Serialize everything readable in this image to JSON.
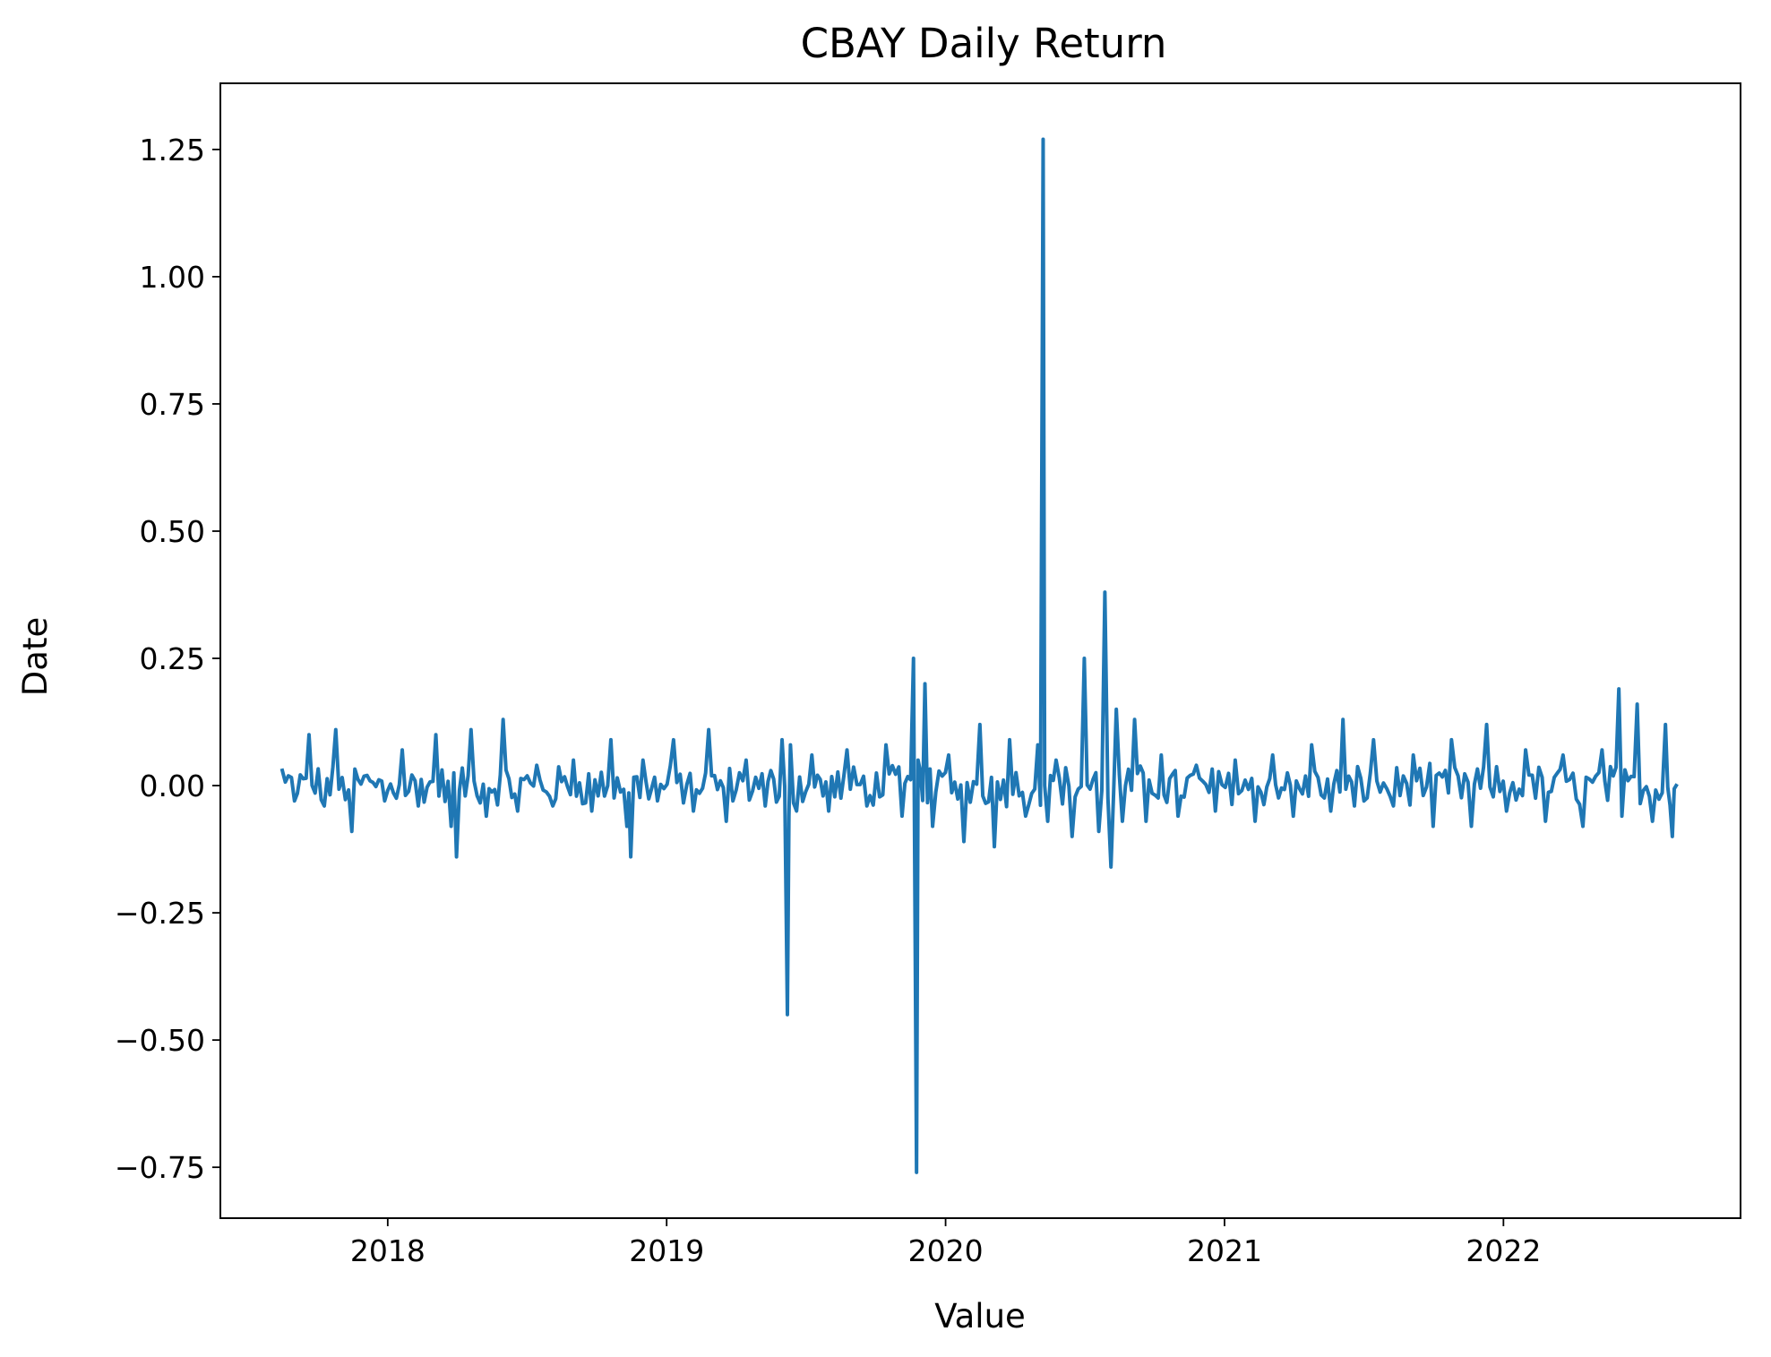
{
  "chart_data": {
    "type": "line",
    "title": "CBAY Daily Return",
    "xlabel": "Value",
    "ylabel": "Date",
    "x_range": [
      "2017-08-15",
      "2022-08-15"
    ],
    "xlim": [
      2017.4,
      2022.85
    ],
    "ylim": [
      -0.85,
      1.38
    ],
    "x_ticks": [
      {
        "value": 2018,
        "label": "2018"
      },
      {
        "value": 2019,
        "label": "2019"
      },
      {
        "value": 2020,
        "label": "2020"
      },
      {
        "value": 2021,
        "label": "2021"
      },
      {
        "value": 2022,
        "label": "2022"
      }
    ],
    "y_ticks": [
      {
        "value": 1.25,
        "label": "1.25"
      },
      {
        "value": 1.0,
        "label": "1.00"
      },
      {
        "value": 0.75,
        "label": "0.75"
      },
      {
        "value": 0.5,
        "label": "0.50"
      },
      {
        "value": 0.25,
        "label": "0.25"
      },
      {
        "value": 0.0,
        "label": "0.00"
      },
      {
        "value": -0.25,
        "label": "−0.25"
      },
      {
        "value": -0.5,
        "label": "−0.50"
      },
      {
        "value": -0.75,
        "label": "−0.75"
      }
    ],
    "grid": false,
    "series": [
      {
        "color": "#1f77b4",
        "x": [
          "2017-08-16",
          "2017-09-01",
          "2017-09-20",
          "2017-10-10",
          "2017-10-25",
          "2017-11-15",
          "2017-12-05",
          "2017-12-28",
          "2018-01-20",
          "2018-02-10",
          "2018-03-05",
          "2018-03-25",
          "2018-04-01",
          "2018-04-20",
          "2018-05-10",
          "2018-06-01",
          "2018-06-20",
          "2018-07-15",
          "2018-08-05",
          "2018-09-01",
          "2018-09-25",
          "2018-10-20",
          "2018-11-10",
          "2018-11-15",
          "2018-12-01",
          "2018-12-20",
          "2019-01-10",
          "2019-02-05",
          "2019-02-25",
          "2019-03-20",
          "2019-04-15",
          "2019-05-10",
          "2019-06-01",
          "2019-06-08",
          "2019-06-10",
          "2019-06-12",
          "2019-06-20",
          "2019-07-10",
          "2019-08-01",
          "2019-08-25",
          "2019-09-20",
          "2019-10-15",
          "2019-11-05",
          "2019-11-20",
          "2019-11-24",
          "2019-11-26",
          "2019-12-05",
          "2019-12-15",
          "2020-01-05",
          "2020-01-25",
          "2020-02-15",
          "2020-03-05",
          "2020-03-25",
          "2020-04-15",
          "2020-05-01",
          "2020-05-08",
          "2020-05-10",
          "2020-05-14",
          "2020-05-25",
          "2020-06-15",
          "2020-07-01",
          "2020-07-20",
          "2020-07-28",
          "2020-08-05",
          "2020-08-12",
          "2020-08-20",
          "2020-09-05",
          "2020-09-20",
          "2020-10-10",
          "2020-11-01",
          "2020-11-25",
          "2020-12-20",
          "2021-01-15",
          "2021-02-10",
          "2021-03-05",
          "2021-04-01",
          "2021-04-25",
          "2021-05-20",
          "2021-06-05",
          "2021-06-20",
          "2021-07-15",
          "2021-08-10",
          "2021-09-05",
          "2021-10-01",
          "2021-10-25",
          "2021-11-20",
          "2021-12-10",
          "2022-01-05",
          "2022-01-30",
          "2022-02-25",
          "2022-03-20",
          "2022-04-15",
          "2022-05-10",
          "2022-06-01",
          "2022-06-05",
          "2022-06-25",
          "2022-07-15",
          "2022-08-01",
          "2022-08-10",
          "2022-08-15"
        ],
        "y": [
          0.03,
          -0.03,
          0.1,
          -0.04,
          0.11,
          -0.09,
          0.02,
          -0.03,
          0.07,
          -0.04,
          0.1,
          -0.08,
          -0.14,
          0.11,
          -0.06,
          0.13,
          -0.05,
          0.04,
          -0.04,
          0.05,
          -0.05,
          0.09,
          -0.08,
          -0.14,
          0.05,
          -0.03,
          0.09,
          -0.05,
          0.11,
          -0.07,
          0.05,
          -0.04,
          0.09,
          -0.45,
          -0.06,
          0.08,
          -0.05,
          0.06,
          -0.05,
          0.07,
          -0.04,
          0.08,
          -0.06,
          0.25,
          -0.76,
          0.05,
          0.2,
          -0.08,
          0.06,
          -0.11,
          0.12,
          -0.12,
          0.09,
          -0.06,
          0.08,
          1.27,
          0.0,
          -0.07,
          0.05,
          -0.1,
          0.25,
          -0.09,
          0.38,
          -0.16,
          0.15,
          -0.07,
          0.13,
          -0.07,
          0.06,
          -0.06,
          0.04,
          -0.05,
          0.05,
          -0.07,
          0.06,
          -0.06,
          0.08,
          -0.05,
          0.13,
          -0.04,
          0.09,
          -0.04,
          0.06,
          -0.08,
          0.09,
          -0.08,
          0.12,
          -0.05,
          0.07,
          -0.07,
          0.06,
          -0.08,
          0.07,
          0.19,
          -0.06,
          0.16,
          -0.07,
          0.12,
          -0.1,
          0.0
        ]
      }
    ]
  }
}
